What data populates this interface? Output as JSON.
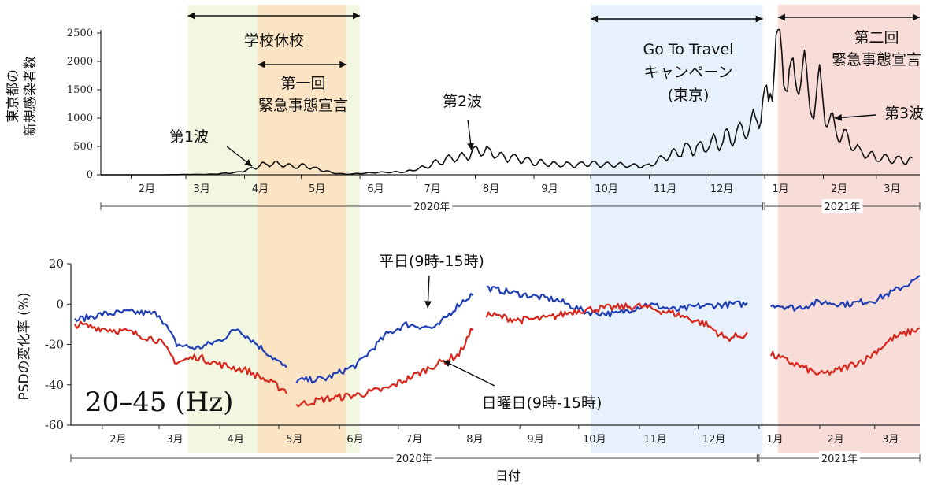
{
  "chart_data": [
    {
      "type": "line",
      "ylabel_lines": [
        "東京都の",
        "新規感染者数"
      ],
      "ylim": [
        0,
        2500
      ],
      "yticks": [
        0,
        500,
        1000,
        1500,
        2000,
        2500
      ],
      "x_range": [
        "2020-01-16",
        "2021-03-24"
      ],
      "month_ticks": [
        {
          "date": "2020-02-01",
          "label": "2月"
        },
        {
          "date": "2020-03-01",
          "label": "3月"
        },
        {
          "date": "2020-04-01",
          "label": "4月"
        },
        {
          "date": "2020-05-01",
          "label": "5月"
        },
        {
          "date": "2020-06-01",
          "label": "6月"
        },
        {
          "date": "2020-07-01",
          "label": "7月"
        },
        {
          "date": "2020-08-01",
          "label": "8月"
        },
        {
          "date": "2020-09-01",
          "label": "9月"
        },
        {
          "date": "2020-10-01",
          "label": "10月"
        },
        {
          "date": "2020-11-01",
          "label": "11月"
        },
        {
          "date": "2020-12-01",
          "label": "12月"
        },
        {
          "date": "2021-01-01",
          "label": "1月"
        },
        {
          "date": "2021-02-01",
          "label": "2月"
        },
        {
          "date": "2021-03-01",
          "label": "3月"
        }
      ],
      "years": [
        {
          "label": "2020年",
          "from": "2020-01-16",
          "to": "2020-12-31"
        },
        {
          "label": "2021年",
          "from": "2021-01-01",
          "to": "2021-03-24"
        }
      ],
      "series": [
        {
          "color": "#111111",
          "x": [
            "2020-01-16",
            "2020-02-15",
            "2020-03-15",
            "2020-03-28",
            "2020-04-05",
            "2020-04-10",
            "2020-04-17",
            "2020-04-25",
            "2020-05-02",
            "2020-05-10",
            "2020-05-18",
            "2020-05-25",
            "2020-06-10",
            "2020-06-25",
            "2020-07-05",
            "2020-07-12",
            "2020-07-19",
            "2020-07-26",
            "2020-08-01",
            "2020-08-08",
            "2020-08-15",
            "2020-08-22",
            "2020-09-01",
            "2020-09-15",
            "2020-10-01",
            "2020-10-15",
            "2020-10-31",
            "2020-11-10",
            "2020-11-20",
            "2020-11-30",
            "2020-12-10",
            "2020-12-20",
            "2020-12-27",
            "2020-12-31",
            "2021-01-03",
            "2021-01-07",
            "2021-01-10",
            "2021-01-14",
            "2021-01-17",
            "2021-01-21",
            "2021-01-25",
            "2021-01-30",
            "2021-02-05",
            "2021-02-12",
            "2021-02-20",
            "2021-03-01",
            "2021-03-10",
            "2021-03-20"
          ],
          "values": [
            0,
            0,
            10,
            40,
            110,
            180,
            200,
            150,
            160,
            100,
            30,
            10,
            40,
            50,
            130,
            220,
            290,
            320,
            420,
            400,
            330,
            300,
            220,
            180,
            190,
            170,
            150,
            320,
            450,
            500,
            620,
            750,
            950,
            1300,
            1200,
            2500,
            1900,
            1800,
            1500,
            2000,
            1200,
            1500,
            900,
            700,
            400,
            300,
            280,
            250
          ],
          "noise": 0.25
        }
      ],
      "annotations": [
        {
          "text": "第1波",
          "x": "2020-03-25",
          "y": 1500
        },
        {
          "text": "第2波",
          "x": "2020-07-30",
          "y": 1500
        },
        {
          "text": "第3波",
          "x": "2021-02-25",
          "y": 1500
        },
        {
          "text": "Go To Travel",
          "x": "2020-11-15",
          "y": 2500
        },
        {
          "text": "キャンペーン",
          "x": "2020-11-15",
          "y": 2500
        },
        {
          "text": "(東京)",
          "x": "2020-11-15",
          "y": 2500
        }
      ],
      "period_labels": {
        "school": "学校休校",
        "emergency1_l1": "第一回",
        "emergency1_l2": "緊急事態宣言",
        "emergency2_l1": "第二回",
        "emergency2_l2": "緊急事態宣言"
      }
    },
    {
      "type": "line",
      "ylabel": "PSDの変化率 (%)",
      "xlabel": "日付",
      "ylim": [
        -60,
        20
      ],
      "yticks": [
        -60,
        -40,
        -20,
        0,
        20
      ],
      "annotation_band": "20–45 (Hz)",
      "series": [
        {
          "name": "平日(9時-15時)",
          "color": "#1f3fb5",
          "segments": [
            {
              "x": [
                "2020-01-18",
                "2020-02-01",
                "2020-02-15",
                "2020-03-01",
                "2020-03-10",
                "2020-03-20",
                "2020-04-01",
                "2020-04-10",
                "2020-04-20",
                "2020-04-30",
                "2020-05-05"
              ],
              "values": [
                -8,
                -5,
                -4,
                -5,
                -20,
                -22,
                -18,
                -12,
                -20,
                -28,
                -32
              ]
            },
            {
              "x": [
                "2020-05-10",
                "2020-05-25",
                "2020-06-10",
                "2020-06-25",
                "2020-07-05",
                "2020-07-20",
                "2020-08-01",
                "2020-08-08"
              ],
              "values": [
                -38,
                -37,
                -30,
                -15,
                -10,
                -12,
                0,
                5
              ]
            },
            {
              "x": [
                "2020-08-15",
                "2020-09-01",
                "2020-09-20",
                "2020-10-05",
                "2020-10-20",
                "2020-11-05",
                "2020-11-20",
                "2020-12-01",
                "2020-12-20",
                "2020-12-26"
              ],
              "values": [
                8,
                5,
                2,
                -4,
                -5,
                0,
                -3,
                -1,
                0,
                0
              ]
            },
            {
              "x": [
                "2021-01-07",
                "2021-01-20",
                "2021-02-01",
                "2021-02-15",
                "2021-03-01",
                "2021-03-10",
                "2021-03-24"
              ],
              "values": [
                0,
                -2,
                1,
                0,
                2,
                6,
                13
              ]
            }
          ],
          "noise": 1.6
        },
        {
          "name": "日曜日(9時-15時)",
          "color": "#d8261c",
          "segments": [
            {
              "x": [
                "2020-01-18",
                "2020-02-01",
                "2020-02-15",
                "2020-03-01",
                "2020-03-10",
                "2020-03-20",
                "2020-04-01",
                "2020-04-15",
                "2020-04-25",
                "2020-05-05"
              ],
              "values": [
                -10,
                -12,
                -14,
                -18,
                -29,
                -26,
                -30,
                -33,
                -38,
                -43
              ]
            },
            {
              "x": [
                "2020-05-10",
                "2020-05-25",
                "2020-06-10",
                "2020-06-25",
                "2020-07-10",
                "2020-07-20",
                "2020-08-01",
                "2020-08-08"
              ],
              "values": [
                -50,
                -47,
                -45,
                -42,
                -35,
                -30,
                -25,
                -12
              ]
            },
            {
              "x": [
                "2020-08-15",
                "2020-09-01",
                "2020-09-15",
                "2020-10-01",
                "2020-10-15",
                "2020-11-01",
                "2020-11-20",
                "2020-12-05",
                "2020-12-15",
                "2020-12-26"
              ],
              "values": [
                -5,
                -8,
                -7,
                -3,
                -2,
                -1,
                -5,
                -10,
                -17,
                -15
              ]
            },
            {
              "x": [
                "2021-01-07",
                "2021-01-20",
                "2021-02-01",
                "2021-02-10",
                "2021-02-25",
                "2021-03-10",
                "2021-03-24"
              ],
              "values": [
                -25,
                -30,
                -35,
                -33,
                -27,
                -17,
                -12
              ]
            }
          ],
          "noise": 1.8
        }
      ]
    }
  ]
}
